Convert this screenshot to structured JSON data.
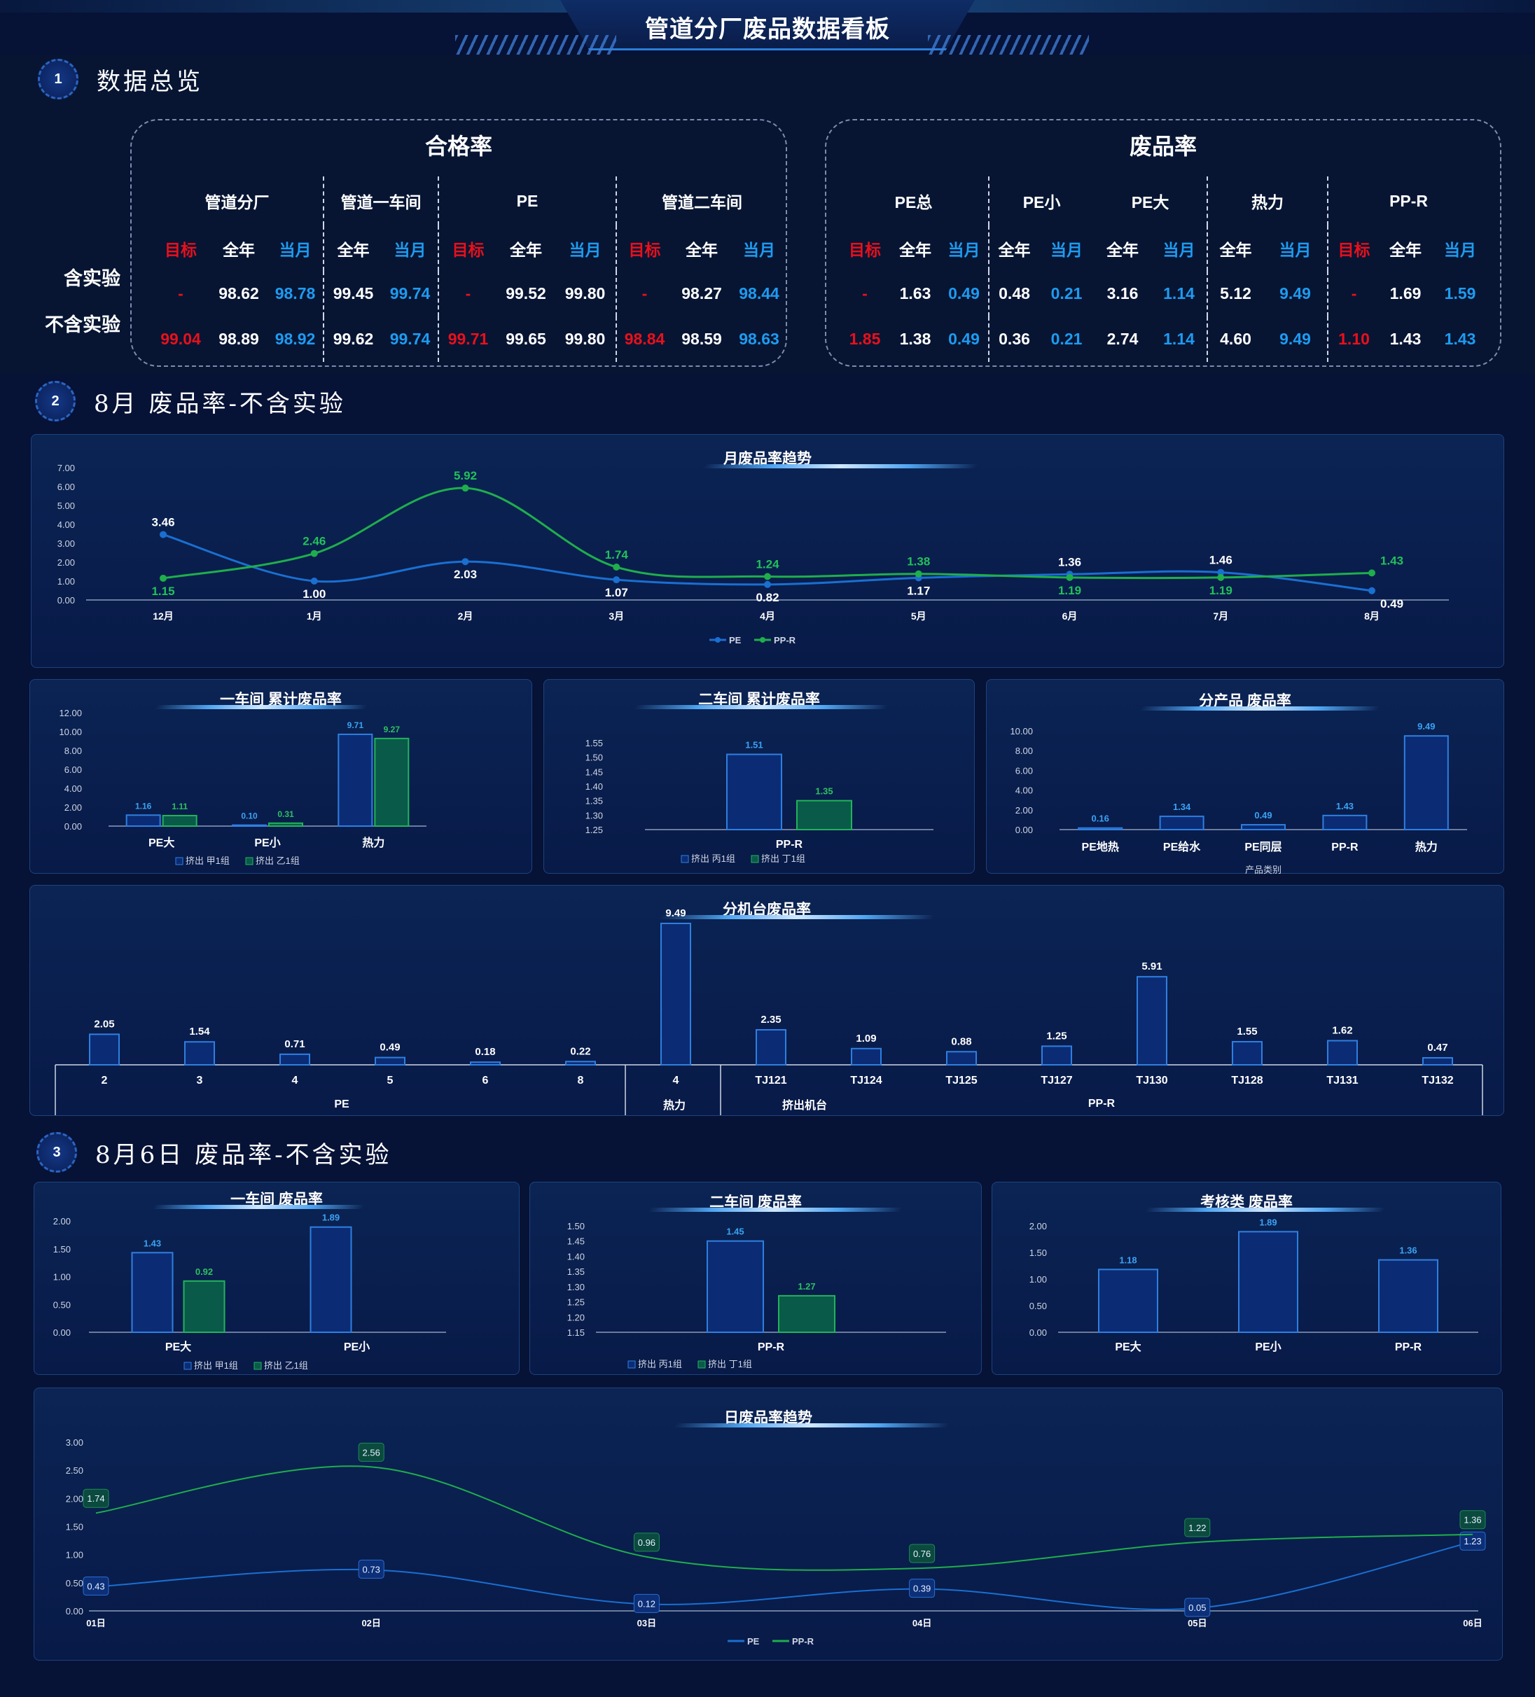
{
  "dashboard_title": "管道分厂废品数据看板",
  "sections": [
    {
      "num": "1",
      "title": "数据总览"
    },
    {
      "num": "2",
      "title": "8月 废品率-不含实验"
    },
    {
      "num": "3",
      "title": "8月6日 废品率-不含实验"
    }
  ],
  "pass_rate": {
    "title": "合格率",
    "groups": [
      "管道分厂",
      "管道一车间",
      "PE",
      "管道二车间"
    ],
    "subheads": [
      "目标",
      "全年",
      "当月",
      "全年",
      "当月",
      "目标",
      "全年",
      "当月",
      "目标",
      "全年",
      "当月"
    ],
    "rows": [
      {
        "label": "含实验",
        "values": [
          "-",
          "98.62",
          "98.78",
          "99.45",
          "99.74",
          "-",
          "99.52",
          "99.80",
          "-",
          "98.27",
          "98.44"
        ]
      },
      {
        "label": "不含实验",
        "values": [
          "99.04",
          "98.89",
          "98.92",
          "99.62",
          "99.74",
          "99.71",
          "99.65",
          "99.80",
          "98.84",
          "98.59",
          "98.63"
        ]
      }
    ]
  },
  "scrap_rate": {
    "title": "废品率",
    "groups": [
      "PE总",
      "PE小",
      "PE大",
      "热力",
      "PP-R"
    ],
    "subheads": [
      "目标",
      "全年",
      "当月",
      "全年",
      "当月",
      "全年",
      "当月",
      "全年",
      "当月",
      "目标",
      "全年",
      "当月"
    ],
    "rows": [
      {
        "label": "含实验",
        "values": [
          "-",
          "1.63",
          "0.49",
          "0.48",
          "0.21",
          "3.16",
          "1.14",
          "5.12",
          "9.49",
          "-",
          "1.69",
          "1.59"
        ]
      },
      {
        "label": "不含实验",
        "values": [
          "1.85",
          "1.38",
          "0.49",
          "0.36",
          "0.21",
          "2.74",
          "1.14",
          "4.60",
          "9.49",
          "1.10",
          "1.43",
          "1.43"
        ]
      }
    ]
  },
  "colors": {
    "pe": "#1a6fd1",
    "ppr": "#1fae4c",
    "red": "#e8101c",
    "blue": "#1e9bf0",
    "bar_blue_fill": "#0b2c74",
    "bar_blue_stroke": "#2f7fe0",
    "bar_green_fill": "#0a5a4a",
    "bar_green_stroke": "#22b35a"
  },
  "chart_data": [
    {
      "id": "monthly",
      "type": "line",
      "title": "月废品率趋势",
      "categories": [
        "12月",
        "1月",
        "2月",
        "3月",
        "4月",
        "5月",
        "6月",
        "7月",
        "8月"
      ],
      "series": [
        {
          "name": "PE",
          "values": [
            3.46,
            1.0,
            2.03,
            1.07,
            0.82,
            1.17,
            1.36,
            1.46,
            0.49
          ]
        },
        {
          "name": "PP-R",
          "values": [
            1.15,
            2.46,
            5.92,
            1.74,
            1.24,
            1.38,
            1.19,
            1.19,
            1.43
          ]
        }
      ],
      "yticks": [
        "0.00",
        "1.00",
        "2.00",
        "3.00",
        "4.00",
        "5.00",
        "6.00",
        "7.00"
      ],
      "ylim": [
        0,
        7
      ]
    },
    {
      "id": "ws1",
      "type": "bar",
      "title": "一车间 累计废品率",
      "categories": [
        "PE大",
        "PE小",
        "热力"
      ],
      "series": [
        {
          "name": "挤出 甲1组",
          "values": [
            1.16,
            0.1,
            9.71
          ]
        },
        {
          "name": "挤出 乙1组",
          "values": [
            1.11,
            0.31,
            9.27
          ]
        }
      ],
      "yticks": [
        "0.00",
        "2.00",
        "4.00",
        "6.00",
        "8.00",
        "10.00",
        "12.00"
      ],
      "ylim": [
        0,
        12
      ]
    },
    {
      "id": "ws2",
      "type": "bar",
      "title": "二车间 累计废品率",
      "categories": [
        "PP-R"
      ],
      "series": [
        {
          "name": "挤出 丙1组",
          "values": [
            1.51
          ]
        },
        {
          "name": "挤出 丁1组",
          "values": [
            1.35
          ]
        }
      ],
      "yticks": [
        "1.25",
        "1.30",
        "1.35",
        "1.40",
        "1.45",
        "1.50",
        "1.55"
      ],
      "ylim": [
        1.25,
        1.55
      ]
    },
    {
      "id": "byprod",
      "type": "bar",
      "title": "分产品 废品率",
      "categories": [
        "PE地热",
        "PE给水",
        "PE同层",
        "PP-R",
        "热力"
      ],
      "xlabel": "产品类别",
      "series": [
        {
          "values": [
            0.16,
            1.34,
            0.49,
            1.43,
            9.49
          ]
        }
      ],
      "yticks": [
        "0.00",
        "2.00",
        "4.00",
        "6.00",
        "8.00",
        "10.00"
      ],
      "ylim": [
        0,
        10
      ]
    },
    {
      "id": "machine",
      "type": "bar",
      "title": "分机台废品率",
      "xlabel": "挤出机台",
      "categories": [
        "2",
        "3",
        "4",
        "5",
        "6",
        "8",
        "4",
        "TJ121",
        "TJ124",
        "TJ125",
        "TJ127",
        "TJ130",
        "TJ128",
        "TJ131",
        "TJ132"
      ],
      "groups": [
        {
          "name": "PE",
          "from": 0,
          "to": 5
        },
        {
          "name": "热力",
          "from": 6,
          "to": 6
        },
        {
          "name": "PP-R",
          "from": 7,
          "to": 14
        }
      ],
      "series": [
        {
          "values": [
            2.05,
            1.54,
            0.71,
            0.49,
            0.18,
            0.22,
            9.49,
            2.35,
            1.09,
            0.88,
            1.25,
            5.91,
            1.55,
            1.62,
            0.47
          ]
        }
      ]
    },
    {
      "id": "d_ws1",
      "type": "bar",
      "title": "一车间 废品率",
      "categories": [
        "PE大",
        "PE小"
      ],
      "series": [
        {
          "name": "挤出 甲1组",
          "values": [
            1.43,
            1.89
          ]
        },
        {
          "name": "挤出 乙1组",
          "values": [
            0.92,
            null
          ]
        }
      ],
      "yticks": [
        "0.00",
        "0.50",
        "1.00",
        "1.50",
        "2.00"
      ],
      "ylim": [
        0,
        2
      ]
    },
    {
      "id": "d_ws2",
      "type": "bar",
      "title": "二车间 废品率",
      "categories": [
        "PP-R"
      ],
      "series": [
        {
          "name": "挤出 丙1组",
          "values": [
            1.45
          ]
        },
        {
          "name": "挤出 丁1组",
          "values": [
            1.27
          ]
        }
      ],
      "yticks": [
        "1.15",
        "1.20",
        "1.25",
        "1.30",
        "1.35",
        "1.40",
        "1.45",
        "1.50"
      ],
      "ylim": [
        1.15,
        1.5
      ]
    },
    {
      "id": "d_assess",
      "type": "bar",
      "title": "考核类 废品率",
      "categories": [
        "PE大",
        "PE小",
        "PP-R"
      ],
      "series": [
        {
          "values": [
            1.18,
            1.89,
            1.36
          ]
        }
      ],
      "yticks": [
        "0.00",
        "0.50",
        "1.00",
        "1.50",
        "2.00"
      ],
      "ylim": [
        0,
        2
      ]
    },
    {
      "id": "daily",
      "type": "line",
      "title": "日废品率趋势",
      "categories": [
        "01日",
        "02日",
        "03日",
        "04日",
        "05日",
        "06日"
      ],
      "series": [
        {
          "name": "PE",
          "values": [
            0.43,
            0.73,
            0.12,
            0.39,
            0.05,
            1.23
          ]
        },
        {
          "name": "PP-R",
          "values": [
            1.74,
            2.56,
            0.96,
            0.76,
            1.22,
            1.36
          ]
        }
      ],
      "yticks": [
        "0.00",
        "0.50",
        "1.00",
        "1.50",
        "2.00",
        "2.50",
        "3.00"
      ],
      "ylim": [
        0,
        3
      ]
    }
  ]
}
